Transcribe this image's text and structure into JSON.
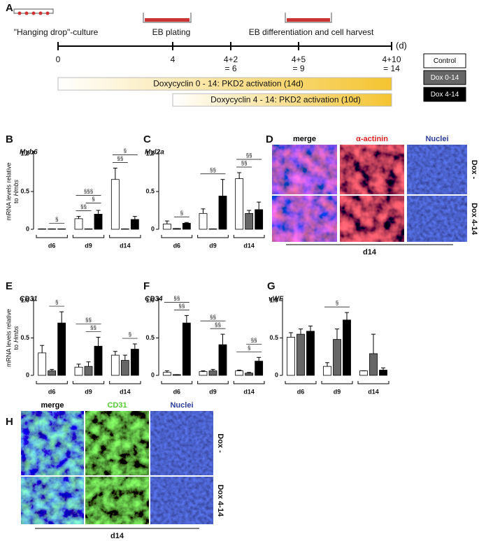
{
  "timeline": {
    "label": "A",
    "stages": [
      "\"Hanging drop\"-culture",
      "EB plating",
      "EB differentiation and cell harvest"
    ],
    "unit": "(d)",
    "ticks": [
      [
        "0"
      ],
      [
        "4"
      ],
      [
        "4+2",
        "= 6"
      ],
      [
        "4+5",
        "= 9"
      ],
      [
        "4+10",
        "= 14"
      ]
    ],
    "treatments": [
      "Doxycyclin 0 - 14: PKD2 activation (14d)",
      "Doxycyclin 4 - 14: PKD2 activation (10d)"
    ]
  },
  "legend": [
    {
      "name": "Control",
      "color": "#ffffff"
    },
    {
      "name": "Dox 0-14",
      "color": "#666666"
    },
    {
      "name": "Dox 4-14",
      "color": "#000000"
    }
  ],
  "chart_data": [
    {
      "type": "bar",
      "label": "B",
      "title": "Myh6",
      "ylabel": {
        "line1": "mRNA levels relative",
        "line2": "to",
        "gene": "Hmbs"
      },
      "categories": [
        "d6",
        "d9",
        "d14"
      ],
      "series": [
        {
          "values": [
            0.005,
            0.14,
            0.66
          ],
          "errors": [
            0,
            0.03,
            0.15
          ]
        },
        {
          "values": [
            0.005,
            0.005,
            0.005
          ],
          "errors": [
            0,
            0,
            0
          ]
        },
        {
          "values": [
            0.005,
            0.2,
            0.13
          ],
          "errors": [
            0,
            0.05,
            0.04
          ]
        }
      ],
      "ylim": [
        0,
        1
      ],
      "yticks": [
        0,
        0.5,
        {
          "value": 1,
          "label": "1.0"
        }
      ],
      "brackets": [
        {
          "label": "§",
          "group": 0,
          "bars": [
            1,
            2
          ]
        },
        {
          "label": "§§",
          "group": 1,
          "bars": [
            0,
            1
          ]
        },
        {
          "label": "§",
          "group": 1,
          "bars": [
            1,
            2
          ]
        },
        {
          "label": "§§§",
          "group": 1,
          "bars": [
            0,
            2
          ]
        },
        {
          "label": "§§",
          "group": 2,
          "bars": [
            0,
            1
          ]
        },
        {
          "label": "§",
          "group": 2,
          "bars": [
            0,
            2
          ]
        }
      ]
    },
    {
      "type": "bar",
      "label": "C",
      "title": "Myl2a",
      "categories": [
        "d6",
        "d9",
        "d14"
      ],
      "series": [
        {
          "values": [
            0.07,
            0.21,
            0.67
          ],
          "errors": [
            0.04,
            0.06,
            0.08
          ]
        },
        {
          "values": [
            0.01,
            0.005,
            0.21
          ],
          "errors": [
            0,
            0,
            0.04
          ]
        },
        {
          "values": [
            0.08,
            0.44,
            0.26
          ],
          "errors": [
            0.01,
            0.22,
            0.1
          ]
        }
      ],
      "ylim": [
        0,
        1
      ],
      "yticks": [
        0,
        0.5,
        {
          "value": 1,
          "label": "1.0"
        }
      ],
      "brackets": [
        {
          "label": "§",
          "group": 0,
          "bars": [
            1,
            2
          ]
        },
        {
          "label": "§§",
          "group": 1,
          "bars": [
            0,
            2
          ]
        },
        {
          "label": "§§",
          "group": 2,
          "bars": [
            0,
            1
          ]
        },
        {
          "label": "§§",
          "group": 2,
          "bars": [
            0,
            2
          ]
        }
      ]
    },
    {
      "type": "bar",
      "label": "E",
      "title": "CD31",
      "ylabel": {
        "line1": "mRNA levels relative",
        "line2": "to",
        "gene": "Hmbs"
      },
      "categories": [
        "d6",
        "d9",
        "d14"
      ],
      "series": [
        {
          "values": [
            0.3,
            0.11,
            0.27
          ],
          "errors": [
            0.1,
            0.04,
            0.05
          ]
        },
        {
          "values": [
            0.06,
            0.12,
            0.2
          ],
          "errors": [
            0.02,
            0.06,
            0.07
          ]
        },
        {
          "values": [
            0.7,
            0.39,
            0.35
          ],
          "errors": [
            0.15,
            0.12,
            0.07
          ]
        }
      ],
      "ylim": [
        0,
        1
      ],
      "yticks": [
        0,
        0.5,
        {
          "value": 1,
          "label": "1.0"
        }
      ],
      "brackets": [
        {
          "label": "§",
          "group": 0,
          "bars": [
            1,
            2
          ]
        },
        {
          "label": "§§",
          "group": 1,
          "bars": [
            1,
            2
          ]
        },
        {
          "label": "§§",
          "group": 1,
          "bars": [
            0,
            2
          ]
        },
        {
          "label": "§",
          "group": 2,
          "bars": [
            1,
            2
          ]
        }
      ]
    },
    {
      "type": "bar",
      "label": "F",
      "title": "CD34",
      "categories": [
        "d6",
        "d9",
        "d14"
      ],
      "series": [
        {
          "values": [
            0.04,
            0.05,
            0.06
          ],
          "errors": [
            0.02,
            0.01,
            0.01
          ]
        },
        {
          "values": [
            0.01,
            0.06,
            0.03
          ],
          "errors": [
            0,
            0.02,
            0.01
          ]
        },
        {
          "values": [
            0.7,
            0.41,
            0.19
          ],
          "errors": [
            0.1,
            0.14,
            0.05
          ]
        }
      ],
      "ylim": [
        0,
        1
      ],
      "yticks": [
        0,
        0.5,
        {
          "value": 1,
          "label": "1.0"
        }
      ],
      "brackets": [
        {
          "label": "§§",
          "group": 0,
          "bars": [
            1,
            2
          ]
        },
        {
          "label": "§§",
          "group": 0,
          "bars": [
            0,
            2
          ]
        },
        {
          "label": "§§",
          "group": 1,
          "bars": [
            1,
            2
          ]
        },
        {
          "label": "§§",
          "group": 1,
          "bars": [
            0,
            2
          ]
        },
        {
          "label": "§",
          "group": 2,
          "bars": [
            0,
            2
          ]
        },
        {
          "label": "§§",
          "group": 2,
          "bars": [
            1,
            2
          ]
        }
      ]
    },
    {
      "type": "bar",
      "label": "G",
      "title": "vWF",
      "categories": [
        "d6",
        "d9",
        "d14"
      ],
      "series": [
        {
          "values": [
            0.51,
            0.12,
            0.06
          ],
          "errors": [
            0.06,
            0.05,
            0
          ]
        },
        {
          "values": [
            0.55,
            0.48,
            0.29
          ],
          "errors": [
            0.07,
            0.14,
            0.26
          ]
        },
        {
          "values": [
            0.59,
            0.74,
            0.07
          ],
          "errors": [
            0.07,
            0.1,
            0.03
          ]
        }
      ],
      "ylim": [
        0,
        1
      ],
      "yticks": [
        0,
        0.5,
        {
          "value": 1,
          "label": "1.0"
        }
      ],
      "brackets": [
        {
          "label": "§",
          "group": 1,
          "bars": [
            0,
            2
          ]
        }
      ]
    }
  ],
  "image_panels": [
    {
      "label": "D",
      "columns": [
        "merge",
        "α-actinin",
        "Nuclei"
      ],
      "rows": [
        "Dox -",
        "Dox 4-14"
      ],
      "footer": "d14"
    },
    {
      "label": "H",
      "columns": [
        "merge",
        "CD31",
        "Nuclei"
      ],
      "rows": [
        "Dox -",
        "Dox 4-14"
      ],
      "footer": "d14"
    }
  ]
}
